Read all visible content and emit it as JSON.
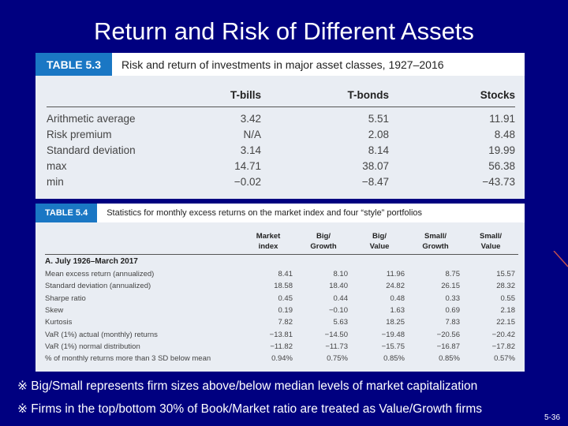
{
  "slide": {
    "title": "Return and Risk of Different Assets",
    "page_number": "5-36"
  },
  "table1": {
    "tag": "TABLE 5.3",
    "caption": "Risk and return of investments in major asset classes, 1927–2016",
    "columns": [
      "T-bills",
      "T-bonds",
      "Stocks"
    ],
    "rows": [
      {
        "label": "Arithmetic average",
        "values": [
          "3.42",
          "5.51",
          "11.91"
        ]
      },
      {
        "label": "Risk premium",
        "values": [
          "N/A",
          "2.08",
          "8.48"
        ]
      },
      {
        "label": "Standard deviation",
        "values": [
          "3.14",
          "8.14",
          "19.99"
        ]
      },
      {
        "label": "max",
        "values": [
          "14.71",
          "38.07",
          "56.38"
        ]
      },
      {
        "label": "min",
        "values": [
          "−0.02",
          "−8.47",
          "−43.73"
        ]
      }
    ]
  },
  "table2": {
    "tag": "TABLE 5.4",
    "caption": "Statistics for monthly excess returns on the market index and four “style” portfolios",
    "columns": [
      {
        "line1": "Market",
        "line2": "index"
      },
      {
        "line1": "Big/",
        "line2": "Growth"
      },
      {
        "line1": "Big/",
        "line2": "Value"
      },
      {
        "line1": "Small/",
        "line2": "Growth"
      },
      {
        "line1": "Small/",
        "line2": "Value"
      }
    ],
    "section": "A. July 1926–March 2017",
    "rows": [
      {
        "label": "Mean excess return (annualized)",
        "values": [
          "8.41",
          "8.10",
          "11.96",
          "8.75",
          "15.57"
        ]
      },
      {
        "label": "Standard deviation (annualized)",
        "values": [
          "18.58",
          "18.40",
          "24.82",
          "26.15",
          "28.32"
        ]
      },
      {
        "label": "Sharpe ratio",
        "values": [
          "0.45",
          "0.44",
          "0.48",
          "0.33",
          "0.55"
        ]
      },
      {
        "label": "Skew",
        "values": [
          "0.19",
          "−0.10",
          "1.63",
          "0.69",
          "2.18"
        ]
      },
      {
        "label": "Kurtosis",
        "values": [
          "7.82",
          "5.63",
          "18.25",
          "7.83",
          "22.15"
        ]
      },
      {
        "label": "VaR (1%) actual (monthly) returns",
        "values": [
          "−13.81",
          "−14.50",
          "−19.48",
          "−20.56",
          "−20.42"
        ]
      },
      {
        "label": "VaR (1%) normal distribution",
        "values": [
          "−11.82",
          "−11.73",
          "−15.75",
          "−16.87",
          "−17.82"
        ]
      },
      {
        "label": "% of monthly returns more than 3 SD below mean",
        "values": [
          "0.94%",
          "0.75%",
          "0.85%",
          "0.85%",
          "0.57%"
        ]
      }
    ]
  },
  "notes": [
    "※ Big/Small represents firm sizes above/below median levels of market capitalization",
    "※ Firms in the top/bottom 30% of Book/Market ratio are treated as Value/Growth firms"
  ],
  "colors": {
    "background": "#000080",
    "tag": "#1a77c4",
    "panel": "#e9edf3"
  }
}
